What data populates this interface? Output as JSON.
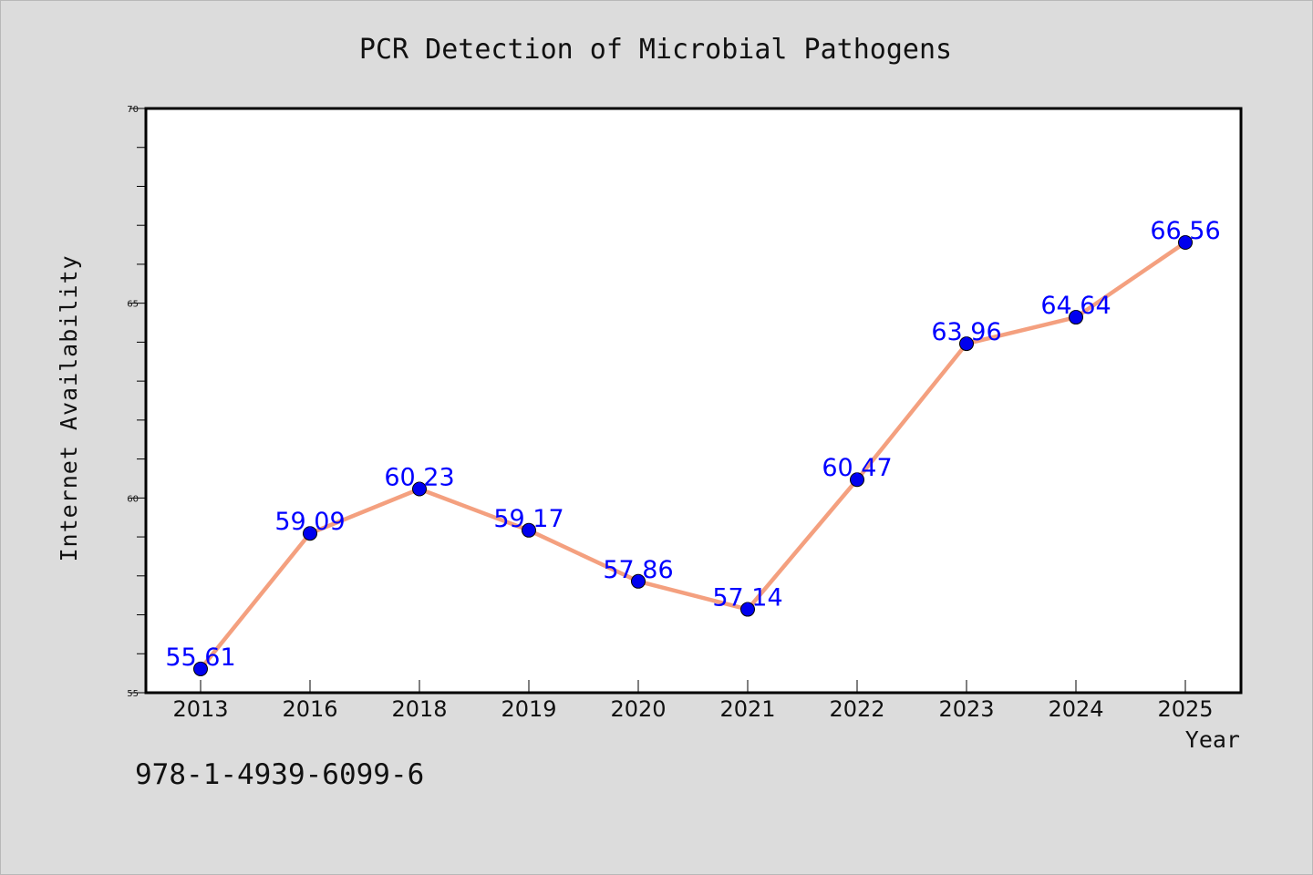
{
  "chart_data": {
    "type": "line",
    "title": "PCR Detection of Microbial Pathogens",
    "xlabel": "Year",
    "ylabel": "Internet Availability",
    "categories": [
      "2013",
      "2016",
      "2018",
      "2019",
      "2020",
      "2021",
      "2022",
      "2023",
      "2024",
      "2025"
    ],
    "values": [
      55.61,
      59.09,
      60.23,
      59.17,
      57.86,
      57.14,
      60.47,
      63.96,
      64.64,
      66.56
    ],
    "data_labels": [
      "55.61",
      "59.09",
      "60.23",
      "59.17",
      "57.86",
      "57.14",
      "60.47",
      "63.96",
      "64.64",
      "66.56"
    ],
    "ylim": [
      55,
      70
    ],
    "yticks": [
      "55",
      "60",
      "65",
      "70"
    ],
    "grid": false,
    "legend": "none",
    "line_color": "#f4a07f",
    "marker_color": "#0000ee",
    "label_color": "#0000ff"
  },
  "footer": {
    "isbn": "978-1-4939-6099-6"
  }
}
